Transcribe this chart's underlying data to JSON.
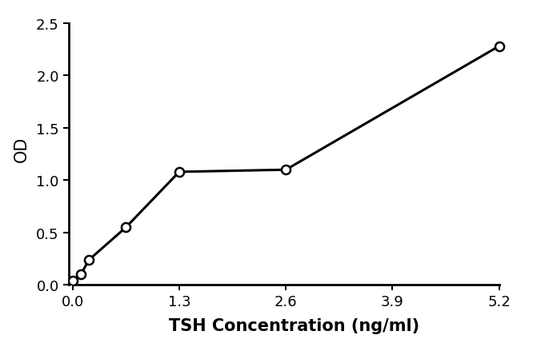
{
  "x_data": [
    0.0,
    0.1,
    0.2,
    0.65,
    1.3,
    2.6,
    5.2
  ],
  "y_data": [
    0.04,
    0.1,
    0.24,
    0.55,
    1.08,
    1.1,
    2.28
  ],
  "xlabel": "TSH Concentration (ng/ml)",
  "ylabel": "OD",
  "xlim": [
    -0.05,
    5.45
  ],
  "ylim": [
    0,
    2.6
  ],
  "xticks": [
    0,
    1.3,
    2.6,
    3.9,
    5.2
  ],
  "yticks": [
    0,
    0.5,
    1.0,
    1.5,
    2.0,
    2.5
  ],
  "line_color": "#000000",
  "marker_facecolor": "#ffffff",
  "marker_edge_color": "#000000",
  "marker_size": 8,
  "line_width": 2.2,
  "xlabel_fontsize": 15,
  "ylabel_fontsize": 15,
  "tick_fontsize": 13,
  "xlabel_fontweight": "bold",
  "background_color": "#ffffff"
}
